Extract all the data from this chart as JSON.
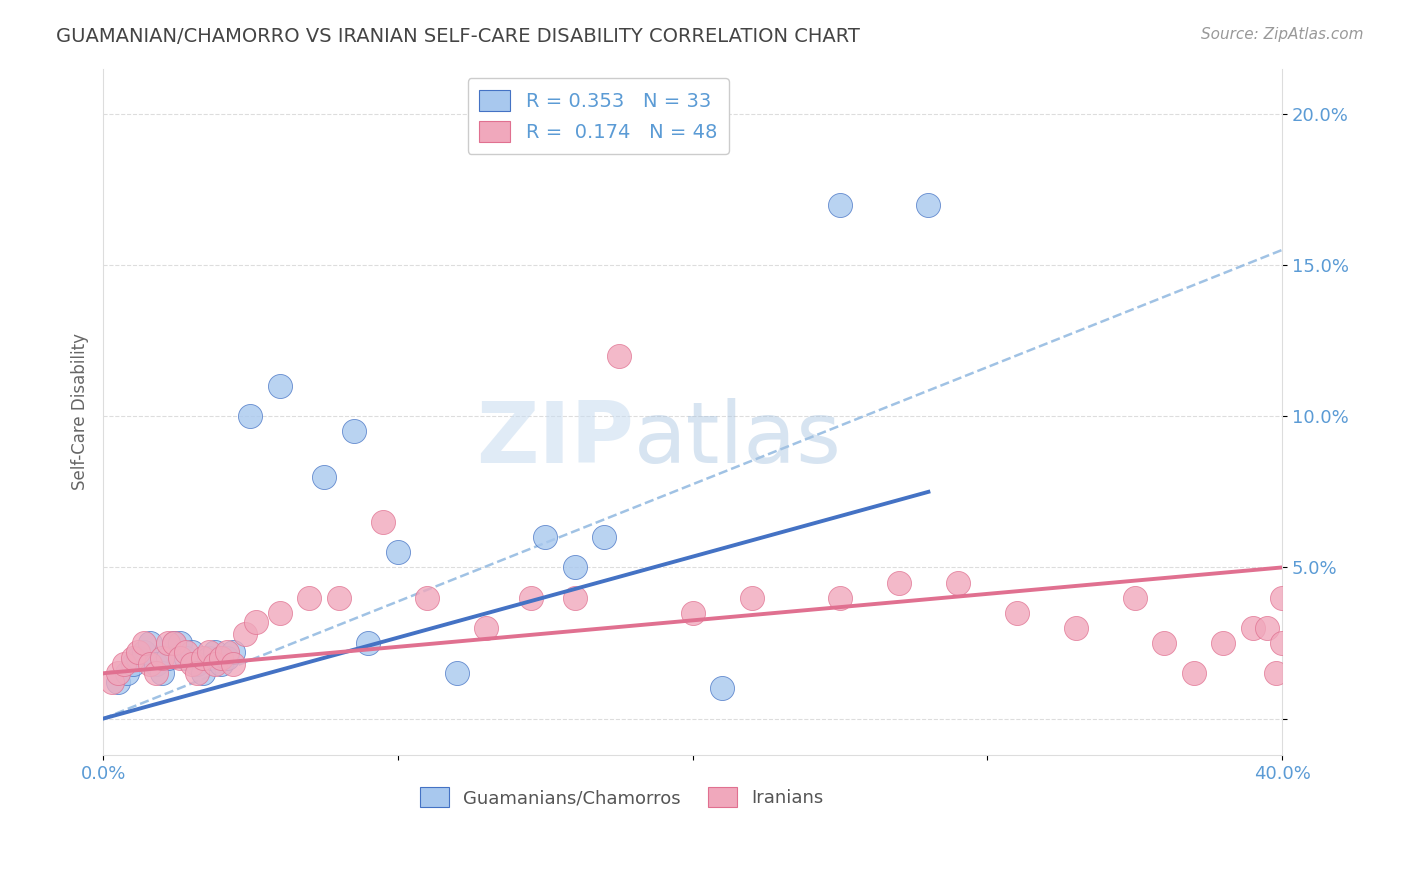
{
  "title": "GUAMANIAN/CHAMORRO VS IRANIAN SELF-CARE DISABILITY CORRELATION CHART",
  "source": "Source: ZipAtlas.com",
  "ylabel": "Self-Care Disability",
  "ytick_vals": [
    0.0,
    0.05,
    0.1,
    0.15,
    0.2
  ],
  "ytick_labels": [
    "",
    "5.0%",
    "10.0%",
    "15.0%",
    "20.0%"
  ],
  "xlim": [
    0.0,
    0.4
  ],
  "ylim": [
    -0.012,
    0.215
  ],
  "legend_r1": "0.353",
  "legend_n1": "33",
  "legend_r2": "0.174",
  "legend_n2": "48",
  "color_blue": "#A8C8EE",
  "color_pink": "#F0A8BC",
  "line_blue": "#4472C4",
  "line_pink": "#E07090",
  "line_dashed_color": "#90B8E0",
  "background": "#FFFFFF",
  "title_color": "#444444",
  "axis_label_color": "#5B9BD5",
  "grid_color": "#DDDDDD",
  "guamanian_x": [
    0.005,
    0.008,
    0.01,
    0.012,
    0.014,
    0.016,
    0.018,
    0.02,
    0.022,
    0.024,
    0.026,
    0.028,
    0.03,
    0.032,
    0.034,
    0.036,
    0.038,
    0.04,
    0.042,
    0.044,
    0.05,
    0.06,
    0.075,
    0.085,
    0.09,
    0.1,
    0.12,
    0.15,
    0.16,
    0.17,
    0.21,
    0.25,
    0.28
  ],
  "guamanian_y": [
    0.012,
    0.015,
    0.018,
    0.02,
    0.022,
    0.025,
    0.018,
    0.015,
    0.02,
    0.025,
    0.025,
    0.02,
    0.022,
    0.018,
    0.015,
    0.02,
    0.022,
    0.018,
    0.02,
    0.022,
    0.1,
    0.11,
    0.08,
    0.095,
    0.025,
    0.055,
    0.015,
    0.06,
    0.05,
    0.06,
    0.01,
    0.17,
    0.17
  ],
  "iranian_x": [
    0.003,
    0.005,
    0.007,
    0.01,
    0.012,
    0.014,
    0.016,
    0.018,
    0.02,
    0.022,
    0.024,
    0.026,
    0.028,
    0.03,
    0.032,
    0.034,
    0.036,
    0.038,
    0.04,
    0.042,
    0.044,
    0.048,
    0.052,
    0.06,
    0.07,
    0.08,
    0.095,
    0.11,
    0.13,
    0.145,
    0.16,
    0.175,
    0.2,
    0.22,
    0.25,
    0.27,
    0.29,
    0.31,
    0.33,
    0.35,
    0.36,
    0.37,
    0.38,
    0.39,
    0.395,
    0.398,
    0.4,
    0.4
  ],
  "iranian_y": [
    0.012,
    0.015,
    0.018,
    0.02,
    0.022,
    0.025,
    0.018,
    0.015,
    0.02,
    0.025,
    0.025,
    0.02,
    0.022,
    0.018,
    0.015,
    0.02,
    0.022,
    0.018,
    0.02,
    0.022,
    0.018,
    0.028,
    0.032,
    0.035,
    0.04,
    0.04,
    0.065,
    0.04,
    0.03,
    0.04,
    0.04,
    0.12,
    0.035,
    0.04,
    0.04,
    0.045,
    0.045,
    0.035,
    0.03,
    0.04,
    0.025,
    0.015,
    0.025,
    0.03,
    0.03,
    0.015,
    0.025,
    0.04
  ],
  "blue_line_x0": 0.0,
  "blue_line_y0": 0.0,
  "blue_line_x1": 0.28,
  "blue_line_y1": 0.075,
  "pink_line_x0": 0.0,
  "pink_line_y0": 0.015,
  "pink_line_x1": 0.4,
  "pink_line_y1": 0.05,
  "dash_line_x0": 0.0,
  "dash_line_y0": 0.0,
  "dash_line_x1": 0.4,
  "dash_line_y1": 0.155
}
